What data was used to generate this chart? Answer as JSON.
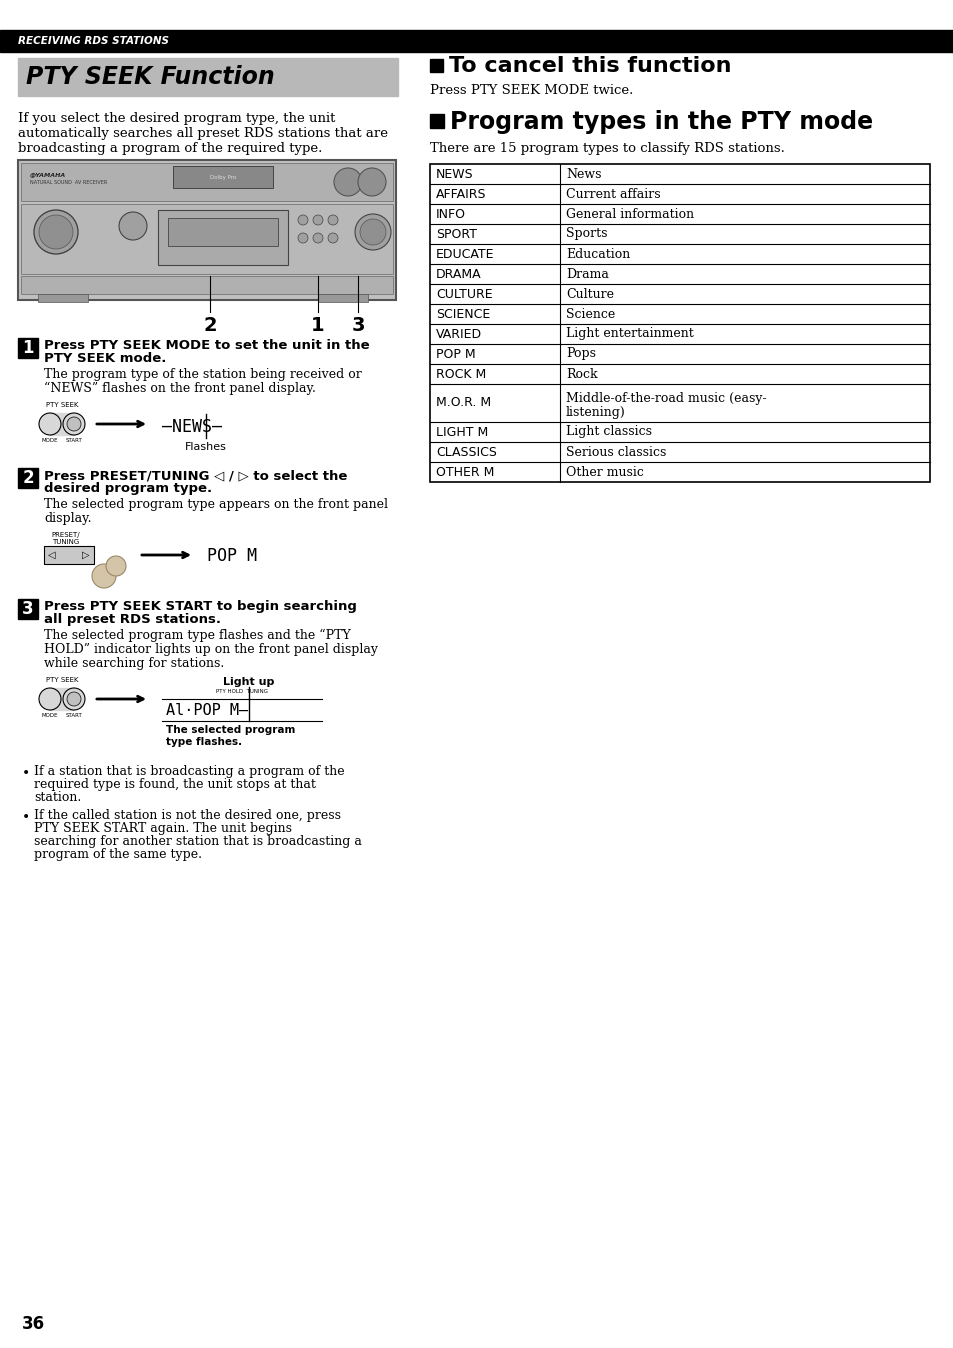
{
  "page_number": "36",
  "header_text": "RECEIVING RDS STATIONS",
  "header_bg": "#000000",
  "header_fg": "#ffffff",
  "title_text": "PTY SEEK Function",
  "title_bg": "#b8b8b8",
  "title_fg": "#000000",
  "intro_lines": [
    "If you select the desired program type, the unit",
    "automatically searches all preset RDS stations that are",
    "broadcasting a program of the required type."
  ],
  "cancel_heading": "To cancel this function",
  "cancel_text": "Press PTY SEEK MODE twice.",
  "program_heading": "Program types in the PTY mode",
  "program_intro": "There are 15 program types to classify RDS stations.",
  "table_data": [
    [
      "NEWS",
      "News"
    ],
    [
      "AFFAIRS",
      "Current affairs"
    ],
    [
      "INFO",
      "General information"
    ],
    [
      "SPORT",
      "Sports"
    ],
    [
      "EDUCATE",
      "Education"
    ],
    [
      "DRAMA",
      "Drama"
    ],
    [
      "CULTURE",
      "Culture"
    ],
    [
      "SCIENCE",
      "Science"
    ],
    [
      "VARIED",
      "Light entertainment"
    ],
    [
      "POP M",
      "Pops"
    ],
    [
      "ROCK M",
      "Rock"
    ],
    [
      "M.O.R. M",
      "Middle-of-the-road music (easy-\nlistening)"
    ],
    [
      "LIGHT M",
      "Light classics"
    ],
    [
      "CLASSICS",
      "Serious classics"
    ],
    [
      "OTHER M",
      "Other music"
    ]
  ],
  "step1_bold1": "Press PTY SEEK MODE to set the unit in the",
  "step1_bold2": "PTY SEEK mode.",
  "step1_text1": "The program type of the station being received or",
  "step1_text2": "“NEWS” flashes on the front panel display.",
  "step1_label": "Flashes",
  "step2_bold1": "Press PRESET/TUNING ◁ / ▷ to select the",
  "step2_bold2": "desired program type.",
  "step2_text1": "The selected program type appears on the front panel",
  "step2_text2": "display.",
  "step3_bold1": "Press PTY SEEK START to begin searching",
  "step3_bold2": "all preset RDS stations.",
  "step3_text1": "The selected program type flashes and the “PTY",
  "step3_text2": "HOLD” indicator lights up on the front panel display",
  "step3_text3": "while searching for stations.",
  "step3_label": "Light up",
  "step3_sublabel1": "The selected program",
  "step3_sublabel2": "type flashes.",
  "bullet1_lines": [
    "If a station that is broadcasting a program of the",
    "required type is found, the unit stops at that",
    "station."
  ],
  "bullet2_lines": [
    "If the called station is not the desired one, press",
    "PTY SEEK START again. The unit begins",
    "searching for another station that is broadcasting a",
    "program of the same type."
  ],
  "bg_color": "#ffffff",
  "text_color": "#000000"
}
